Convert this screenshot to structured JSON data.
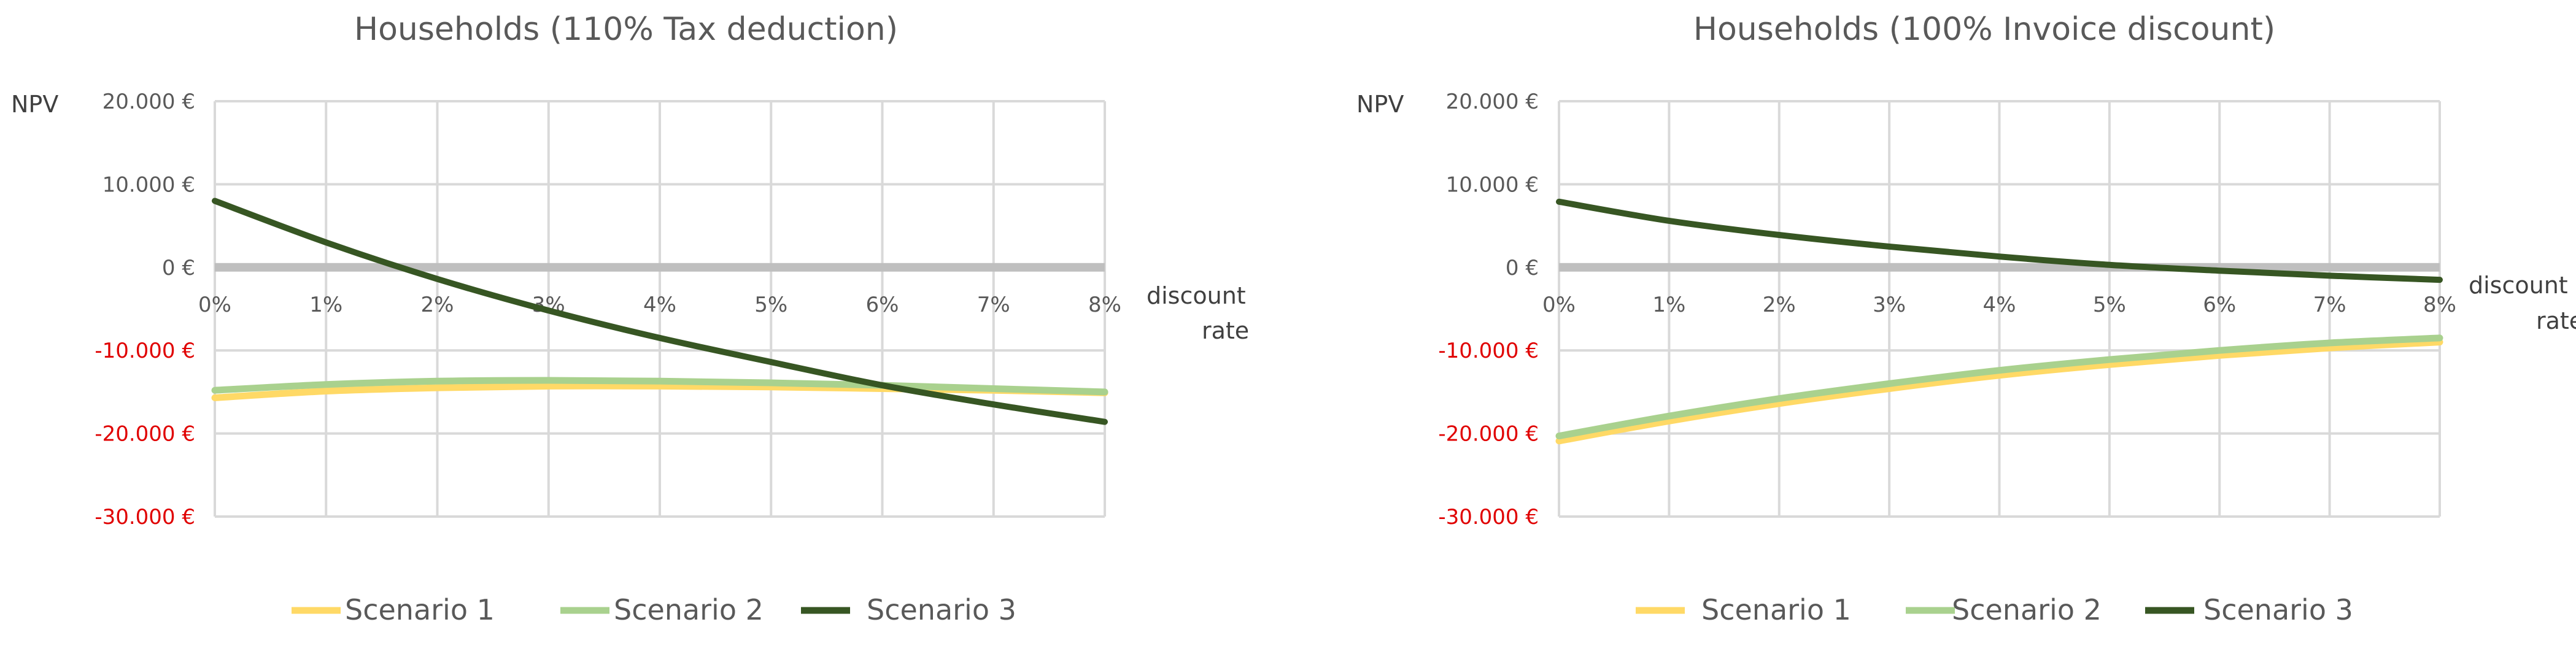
{
  "colors": {
    "scenario1": "#ffd966",
    "scenario2": "#a9d18e",
    "scenario3": "#375623",
    "negative_tick": "#e00000",
    "positive_tick": "#595959"
  },
  "chart_data": [
    {
      "type": "line",
      "title": "Households (110% Tax deduction)",
      "ylabel": "NPV",
      "xlabel_line1": "discount",
      "xlabel_line2": "rate",
      "x": [
        0,
        1,
        2,
        3,
        4,
        5,
        6,
        7,
        8
      ],
      "xtick_labels": [
        "0%",
        "1%",
        "2%",
        "3%",
        "4%",
        "5%",
        "6%",
        "7%",
        "8%"
      ],
      "ytick_values": [
        20000,
        10000,
        0,
        -10000,
        -20000,
        -30000
      ],
      "ytick_labels": [
        "20.000 €",
        "10.000 €",
        "0 €",
        "-10.000 €",
        "-20.000 €",
        "-30.000 €"
      ],
      "ylim": [
        -30000,
        20000
      ],
      "xlim": [
        0,
        8
      ],
      "grid": true,
      "legend": "bottom",
      "series": [
        {
          "name": "Scenario 1",
          "color": "#ffd966",
          "values": [
            -15700,
            -14900,
            -14500,
            -14300,
            -14300,
            -14400,
            -14600,
            -14800,
            -15100
          ]
        },
        {
          "name": "Scenario 2",
          "color": "#a9d18e",
          "values": [
            -14800,
            -14100,
            -13700,
            -13600,
            -13700,
            -13900,
            -14200,
            -14600,
            -15000
          ]
        },
        {
          "name": "Scenario 3",
          "color": "#375623",
          "values": [
            8000,
            3000,
            -1400,
            -5200,
            -8500,
            -11400,
            -14200,
            -16500,
            -18600
          ]
        }
      ]
    },
    {
      "type": "line",
      "title": "Households (100% Invoice discount)",
      "ylabel": "NPV",
      "xlabel_line1": "discount",
      "xlabel_line2": "rate",
      "x": [
        0,
        1,
        2,
        3,
        4,
        5,
        6,
        7,
        8
      ],
      "xtick_labels": [
        "0%",
        "1%",
        "2%",
        "3%",
        "4%",
        "5%",
        "6%",
        "7%",
        "8%"
      ],
      "ytick_values": [
        20000,
        10000,
        0,
        -10000,
        -20000,
        -30000
      ],
      "ytick_labels": [
        "20.000 €",
        "10.000 €",
        "0 €",
        "-10.000 €",
        "-20.000 €",
        "-30.000 €"
      ],
      "ylim": [
        -30000,
        20000
      ],
      "xlim": [
        0,
        8
      ],
      "grid": true,
      "legend": "bottom",
      "series": [
        {
          "name": "Scenario 1",
          "color": "#ffd966",
          "values": [
            -20900,
            -18500,
            -16400,
            -14600,
            -13000,
            -11700,
            -10600,
            -9700,
            -9000
          ]
        },
        {
          "name": "Scenario 2",
          "color": "#a9d18e",
          "values": [
            -20300,
            -17900,
            -15800,
            -14000,
            -12400,
            -11100,
            -10000,
            -9100,
            -8500
          ]
        },
        {
          "name": "Scenario 3",
          "color": "#375623",
          "values": [
            7900,
            5600,
            3900,
            2500,
            1300,
            300,
            -400,
            -1000,
            -1500
          ]
        }
      ]
    }
  ]
}
